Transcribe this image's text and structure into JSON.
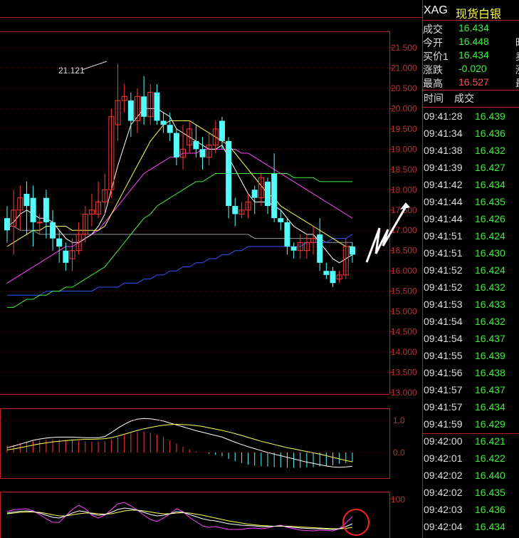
{
  "colors": {
    "up": "#ff3a3a",
    "down": "#54fcfc",
    "ma5": "#ffffff",
    "ma10": "#ffff55",
    "ma20": "#ff44ff",
    "ma30": "#44ee44",
    "ma60": "#3355ff",
    "avg": "#999999",
    "dif": "#ffffff",
    "dea": "#ffff55",
    "k": "#ffffff",
    "d": "#ffff55",
    "j": "#ff44ff",
    "green": "#3cf03c",
    "red": "#ff4f4f",
    "yellow": "#ffff3c",
    "circle": "#ff2222",
    "arrow": "#ffffff"
  },
  "chart_data": [
    {
      "type": "candlestick",
      "title": "",
      "y_ticks": [
        "21.500",
        "21.000",
        "20.500",
        "20.000",
        "19.500",
        "19.000",
        "18.500",
        "18.000",
        "17.500",
        "17.000",
        "16.500",
        "16.000",
        "15.500",
        "15.000",
        "14.500",
        "14.000",
        "13.500",
        "13.000"
      ],
      "ylim": [
        13.0,
        21.75
      ],
      "grid": true,
      "annotations": [
        "21.121"
      ],
      "candles": [
        {
          "o": 17.3,
          "c": 17.0,
          "h": 17.6,
          "l": 16.7
        },
        {
          "o": 17.1,
          "c": 17.5,
          "h": 18.0,
          "l": 16.4
        },
        {
          "o": 17.5,
          "c": 17.8,
          "h": 18.1,
          "l": 17.0
        },
        {
          "o": 17.9,
          "c": 17.6,
          "h": 18.2,
          "l": 16.9
        },
        {
          "o": 17.8,
          "c": 17.2,
          "h": 18.1,
          "l": 16.6
        },
        {
          "o": 17.2,
          "c": 17.2,
          "h": 17.4,
          "l": 16.9
        },
        {
          "o": 17.8,
          "c": 17.2,
          "h": 18.0,
          "l": 16.8
        },
        {
          "o": 17.2,
          "c": 16.8,
          "h": 17.5,
          "l": 16.5
        },
        {
          "o": 16.8,
          "c": 16.6,
          "h": 17.0,
          "l": 16.2
        },
        {
          "o": 16.5,
          "c": 16.2,
          "h": 16.7,
          "l": 16.0
        },
        {
          "o": 16.3,
          "c": 16.5,
          "h": 16.8,
          "l": 16.0
        },
        {
          "o": 16.5,
          "c": 16.9,
          "h": 17.2,
          "l": 16.4
        },
        {
          "o": 16.9,
          "c": 17.4,
          "h": 17.6,
          "l": 16.7
        },
        {
          "o": 17.4,
          "c": 17.5,
          "h": 17.9,
          "l": 17.1
        },
        {
          "o": 17.4,
          "c": 17.7,
          "h": 18.2,
          "l": 17.3
        },
        {
          "o": 17.7,
          "c": 18.0,
          "h": 18.4,
          "l": 17.4
        },
        {
          "o": 18.0,
          "c": 19.8,
          "h": 20.0,
          "l": 17.8
        },
        {
          "o": 19.6,
          "c": 20.2,
          "h": 21.1,
          "l": 19.2
        },
        {
          "o": 20.2,
          "c": 20.3,
          "h": 20.6,
          "l": 19.9
        },
        {
          "o": 20.2,
          "c": 19.7,
          "h": 20.4,
          "l": 19.3
        },
        {
          "o": 19.7,
          "c": 20.3,
          "h": 20.5,
          "l": 19.4
        },
        {
          "o": 20.3,
          "c": 19.8,
          "h": 20.8,
          "l": 19.6
        },
        {
          "o": 19.8,
          "c": 20.4,
          "h": 20.6,
          "l": 19.6
        },
        {
          "o": 20.4,
          "c": 19.7,
          "h": 20.6,
          "l": 19.6
        },
        {
          "o": 19.7,
          "c": 19.6,
          "h": 19.9,
          "l": 19.4
        },
        {
          "o": 19.6,
          "c": 19.4,
          "h": 19.9,
          "l": 19.2
        },
        {
          "o": 19.4,
          "c": 18.8,
          "h": 19.5,
          "l": 18.6
        },
        {
          "o": 18.8,
          "c": 19.0,
          "h": 19.6,
          "l": 18.5
        },
        {
          "o": 19.1,
          "c": 19.5,
          "h": 19.7,
          "l": 18.9
        },
        {
          "o": 19.2,
          "c": 19.0,
          "h": 19.6,
          "l": 18.8
        },
        {
          "o": 19.0,
          "c": 18.8,
          "h": 19.3,
          "l": 18.5
        },
        {
          "o": 18.8,
          "c": 19.1,
          "h": 19.4,
          "l": 18.6
        },
        {
          "o": 19.1,
          "c": 19.5,
          "h": 19.7,
          "l": 18.9
        },
        {
          "o": 19.7,
          "c": 19.2,
          "h": 19.8,
          "l": 19.0
        },
        {
          "o": 19.2,
          "c": 17.6,
          "h": 19.3,
          "l": 17.3
        },
        {
          "o": 17.6,
          "c": 17.4,
          "h": 17.8,
          "l": 17.1
        },
        {
          "o": 17.4,
          "c": 17.5,
          "h": 17.7,
          "l": 17.3
        },
        {
          "o": 17.5,
          "c": 17.7,
          "h": 17.9,
          "l": 17.3
        },
        {
          "o": 18.0,
          "c": 17.8,
          "h": 18.1,
          "l": 17.4
        },
        {
          "o": 17.8,
          "c": 18.3,
          "h": 18.4,
          "l": 17.6
        },
        {
          "o": 18.2,
          "c": 17.6,
          "h": 18.3,
          "l": 17.4
        },
        {
          "o": 18.4,
          "c": 17.3,
          "h": 18.9,
          "l": 17.2
        },
        {
          "o": 17.3,
          "c": 17.2,
          "h": 17.5,
          "l": 17.0
        },
        {
          "o": 17.2,
          "c": 16.6,
          "h": 17.3,
          "l": 16.4
        },
        {
          "o": 16.6,
          "c": 16.5,
          "h": 16.7,
          "l": 16.3
        },
        {
          "o": 16.5,
          "c": 16.7,
          "h": 16.9,
          "l": 16.3
        },
        {
          "o": 16.5,
          "c": 16.7,
          "h": 16.9,
          "l": 16.3
        },
        {
          "o": 16.7,
          "c": 16.8,
          "h": 17.1,
          "l": 16.4
        },
        {
          "o": 16.9,
          "c": 16.2,
          "h": 17.3,
          "l": 16.0
        },
        {
          "o": 16.0,
          "c": 15.9,
          "h": 16.2,
          "l": 15.8
        },
        {
          "o": 16.0,
          "c": 15.7,
          "h": 16.1,
          "l": 15.6
        },
        {
          "o": 15.8,
          "c": 15.9,
          "h": 16.0,
          "l": 15.7
        },
        {
          "o": 15.9,
          "c": 16.6,
          "h": 16.8,
          "l": 15.8
        },
        {
          "o": 16.6,
          "c": 16.4,
          "h": 16.7,
          "l": 16.2
        }
      ],
      "ma5": [
        17.1,
        17.2,
        17.4,
        17.5,
        17.4,
        17.3,
        17.3,
        17.2,
        17.0,
        16.8,
        16.7,
        16.7,
        16.8,
        16.9,
        17.1,
        17.4,
        18.0,
        18.6,
        19.1,
        19.6,
        19.8,
        20.0,
        20.0,
        20.0,
        19.9,
        19.8,
        19.5,
        19.4,
        19.3,
        19.2,
        19.1,
        19.0,
        19.0,
        19.1,
        18.8,
        18.5,
        18.2,
        17.9,
        17.7,
        17.7,
        17.7,
        17.6,
        17.5,
        17.3,
        17.1,
        17.0,
        16.9,
        16.9,
        16.7,
        16.5,
        16.3,
        16.2,
        16.3,
        16.4
      ],
      "ma10": [
        16.6,
        16.7,
        16.8,
        16.9,
        17.0,
        17.0,
        17.1,
        17.1,
        17.1,
        17.1,
        17.0,
        17.0,
        17.0,
        17.0,
        17.0,
        17.1,
        17.4,
        17.7,
        18.0,
        18.3,
        18.6,
        18.9,
        19.2,
        19.4,
        19.6,
        19.7,
        19.7,
        19.7,
        19.7,
        19.6,
        19.5,
        19.4,
        19.3,
        19.2,
        19.1,
        18.9,
        18.7,
        18.5,
        18.3,
        18.1,
        17.9,
        17.8,
        17.6,
        17.5,
        17.4,
        17.3,
        17.2,
        17.1,
        17.0,
        16.9,
        16.8,
        16.7,
        16.6,
        16.6
      ],
      "ma20": [
        15.7,
        15.8,
        15.9,
        16.0,
        16.1,
        16.2,
        16.3,
        16.4,
        16.5,
        16.6,
        16.6,
        16.7,
        16.8,
        16.9,
        17.0,
        17.2,
        17.4,
        17.6,
        17.8,
        18.0,
        18.2,
        18.4,
        18.5,
        18.6,
        18.7,
        18.8,
        18.8,
        18.9,
        18.9,
        18.9,
        19.0,
        19.0,
        19.0,
        19.0,
        19.0,
        19.0,
        18.9,
        18.9,
        18.8,
        18.7,
        18.6,
        18.5,
        18.4,
        18.3,
        18.2,
        18.1,
        18.0,
        17.9,
        17.8,
        17.7,
        17.6,
        17.5,
        17.4,
        17.3
      ],
      "ma30": [
        15.1,
        15.1,
        15.2,
        15.3,
        15.3,
        15.4,
        15.4,
        15.5,
        15.5,
        15.6,
        15.6,
        15.7,
        15.8,
        15.9,
        16.0,
        16.1,
        16.3,
        16.5,
        16.7,
        16.9,
        17.1,
        17.3,
        17.4,
        17.6,
        17.7,
        17.8,
        17.9,
        18.0,
        18.1,
        18.2,
        18.2,
        18.3,
        18.4,
        18.4,
        18.4,
        18.4,
        18.4,
        18.4,
        18.4,
        18.4,
        18.4,
        18.4,
        18.4,
        18.4,
        18.3,
        18.3,
        18.3,
        18.3,
        18.2,
        18.2,
        18.2,
        18.2,
        18.2,
        18.2
      ],
      "ma60": [
        15.4,
        15.4,
        15.4,
        15.4,
        15.4,
        15.4,
        15.5,
        15.5,
        15.5,
        15.5,
        15.5,
        15.5,
        15.5,
        15.5,
        15.6,
        15.6,
        15.6,
        15.6,
        15.7,
        15.7,
        15.7,
        15.8,
        15.8,
        15.9,
        15.9,
        16.0,
        16.0,
        16.1,
        16.1,
        16.2,
        16.2,
        16.3,
        16.3,
        16.4,
        16.4,
        16.5,
        16.5,
        16.6,
        16.6,
        16.6,
        16.6,
        16.6,
        16.6,
        16.6,
        16.6,
        16.6,
        16.7,
        16.7,
        16.7,
        16.7,
        16.8,
        16.8,
        16.8,
        16.9
      ],
      "avg": [
        17.1,
        17.1,
        17.0,
        17.0,
        17.0,
        16.9,
        16.9,
        16.9,
        16.9,
        16.9,
        16.9,
        16.9,
        16.9,
        16.9,
        16.9,
        16.9,
        16.9,
        16.9,
        16.9,
        16.9,
        16.9,
        16.9,
        16.9,
        16.9,
        16.9,
        16.9,
        16.9,
        16.9,
        16.9,
        16.9,
        16.9,
        16.9,
        16.9,
        16.9,
        16.9,
        16.9,
        16.9,
        16.9,
        16.8,
        16.8,
        16.8,
        16.8,
        16.8,
        16.8,
        16.8,
        16.8,
        16.8,
        16.8,
        16.8,
        16.7,
        16.7,
        16.7,
        16.7,
        16.7
      ]
    },
    {
      "type": "macd",
      "y_ticks": [
        "1.0",
        "0.0"
      ],
      "ylim": [
        -0.6,
        1.2
      ],
      "hist": [
        0.22,
        0.25,
        0.3,
        0.34,
        0.36,
        0.38,
        0.39,
        0.4,
        0.4,
        0.39,
        0.38,
        0.36,
        0.35,
        0.34,
        0.34,
        0.35,
        0.4,
        0.47,
        0.54,
        0.6,
        0.64,
        0.65,
        0.62,
        0.56,
        0.48,
        0.38,
        0.28,
        0.18,
        0.1,
        0.04,
        0.0,
        -0.04,
        -0.08,
        -0.12,
        -0.2,
        -0.27,
        -0.33,
        -0.38,
        -0.41,
        -0.43,
        -0.44,
        -0.46,
        -0.47,
        -0.48,
        -0.48,
        -0.48,
        -0.47,
        -0.46,
        -0.44,
        -0.42,
        -0.4,
        -0.36,
        -0.33,
        -0.3
      ],
      "dif": [
        0.15,
        0.2,
        0.26,
        0.32,
        0.38,
        0.42,
        0.45,
        0.47,
        0.48,
        0.48,
        0.48,
        0.47,
        0.46,
        0.46,
        0.46,
        0.5,
        0.62,
        0.76,
        0.88,
        0.98,
        1.04,
        1.06,
        1.05,
        1.02,
        0.98,
        0.92,
        0.86,
        0.8,
        0.74,
        0.68,
        0.63,
        0.58,
        0.53,
        0.48,
        0.4,
        0.32,
        0.25,
        0.18,
        0.12,
        0.06,
        0.0,
        -0.05,
        -0.1,
        -0.15,
        -0.2,
        -0.25,
        -0.3,
        -0.34,
        -0.38,
        -0.42,
        -0.45,
        -0.46,
        -0.45,
        -0.43
      ],
      "dea": [
        0.08,
        0.11,
        0.15,
        0.19,
        0.23,
        0.27,
        0.3,
        0.33,
        0.35,
        0.37,
        0.39,
        0.4,
        0.41,
        0.41,
        0.42,
        0.43,
        0.46,
        0.51,
        0.57,
        0.63,
        0.69,
        0.74,
        0.78,
        0.82,
        0.85,
        0.87,
        0.88,
        0.87,
        0.86,
        0.84,
        0.81,
        0.77,
        0.73,
        0.69,
        0.64,
        0.59,
        0.53,
        0.47,
        0.41,
        0.35,
        0.3,
        0.25,
        0.2,
        0.15,
        0.11,
        0.07,
        0.03,
        -0.01,
        -0.05,
        -0.1,
        -0.15,
        -0.2,
        -0.25,
        -0.29
      ]
    },
    {
      "type": "kdj",
      "y_ticks": [
        "100"
      ],
      "ylim": [
        0,
        100
      ],
      "k": [
        60,
        63,
        65,
        66,
        64,
        60,
        54,
        48,
        46,
        52,
        60,
        66,
        64,
        58,
        54,
        56,
        62,
        70,
        74,
        72,
        68,
        62,
        56,
        52,
        54,
        58,
        64,
        62,
        56,
        50,
        44,
        40,
        38,
        34,
        30,
        28,
        26,
        25,
        24,
        22,
        22,
        23,
        24,
        22,
        20,
        18,
        17,
        16,
        16,
        15,
        14,
        16,
        22,
        30
      ],
      "d": [
        58,
        60,
        62,
        63,
        63,
        62,
        59,
        55,
        52,
        52,
        55,
        58,
        60,
        60,
        58,
        57,
        58,
        62,
        66,
        68,
        68,
        66,
        63,
        60,
        58,
        58,
        60,
        61,
        60,
        57,
        54,
        50,
        46,
        42,
        38,
        35,
        32,
        29,
        27,
        25,
        24,
        23,
        23,
        23,
        22,
        21,
        20,
        19,
        18,
        17,
        16,
        16,
        17,
        20
      ],
      "j": [
        64,
        69,
        71,
        72,
        66,
        56,
        44,
        34,
        34,
        52,
        70,
        82,
        72,
        54,
        46,
        54,
        70,
        86,
        90,
        80,
        68,
        54,
        42,
        36,
        46,
        58,
        72,
        64,
        48,
        36,
        24,
        20,
        22,
        18,
        14,
        14,
        14,
        17,
        18,
        16,
        18,
        23,
        26,
        20,
        16,
        12,
        11,
        10,
        12,
        11,
        10,
        16,
        32,
        50
      ]
    }
  ],
  "header": {
    "symbol": "XAG",
    "name": "现货白银"
  },
  "quote": [
    {
      "label": "成交",
      "value": "16.434",
      "color": "green",
      "cut": ""
    },
    {
      "label": "今开",
      "value": "16.448",
      "color": "green",
      "cut": "昨"
    },
    {
      "label": "买价1",
      "value": "16.434",
      "color": "green",
      "cut": "卖"
    },
    {
      "label": "涨跌",
      "value": "-0.020",
      "color": "green",
      "cut": "涨"
    },
    {
      "label": "最高",
      "value": "16.527",
      "color": "red",
      "cut": "最"
    }
  ],
  "ticks_header": {
    "time": "时间",
    "price": "成交"
  },
  "ticks": [
    {
      "time": "09:41:28",
      "price": "16.439"
    },
    {
      "time": "09:41:34",
      "price": "16.436"
    },
    {
      "time": "09:41:38",
      "price": "16.432"
    },
    {
      "time": "09:41:39",
      "price": "16.427"
    },
    {
      "time": "09:41:42",
      "price": "16.434"
    },
    {
      "time": "09:41:44",
      "price": "16.435"
    },
    {
      "time": "09:41:44",
      "price": "16.426"
    },
    {
      "time": "09:41:51",
      "price": "16.424"
    },
    {
      "time": "09:41:51",
      "price": "16.430"
    },
    {
      "time": "09:41:52",
      "price": "16.424"
    },
    {
      "time": "09:41:52",
      "price": "16.432"
    },
    {
      "time": "09:41:53",
      "price": "16.433"
    },
    {
      "time": "09:41:54",
      "price": "16.432"
    },
    {
      "time": "09:41:54",
      "price": "16.437"
    },
    {
      "time": "09:41:55",
      "price": "16.439"
    },
    {
      "time": "09:41:56",
      "price": "16.438"
    },
    {
      "time": "09:41:57",
      "price": "16.437"
    },
    {
      "time": "09:41:57",
      "price": "16.434"
    },
    {
      "time": "09:41:59",
      "price": "16.429"
    },
    {
      "time": "09:42:00",
      "price": "16.421"
    },
    {
      "time": "09:42:01",
      "price": "16.422"
    },
    {
      "time": "09:42:02",
      "price": "16.440"
    },
    {
      "time": "09:42:02",
      "price": "16.435"
    },
    {
      "time": "09:42:03",
      "price": "16.436"
    },
    {
      "time": "09:42:04",
      "price": "16.434"
    }
  ]
}
